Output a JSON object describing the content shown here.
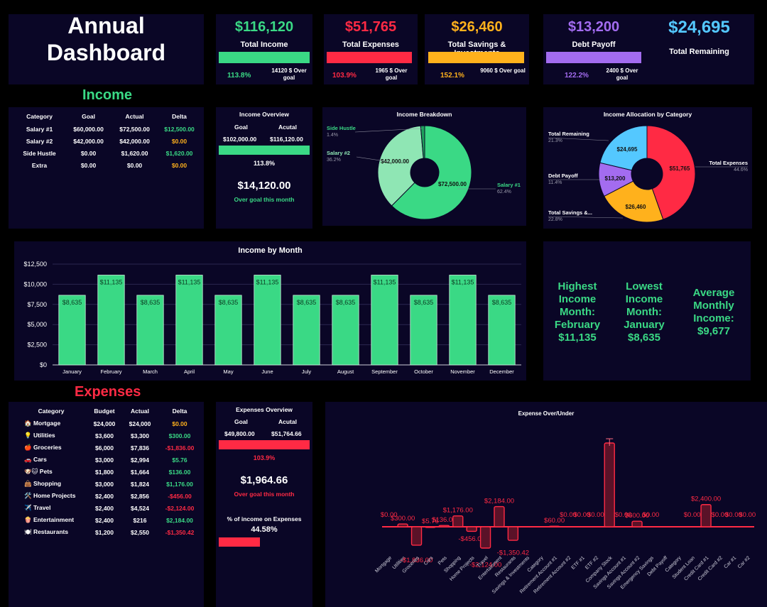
{
  "title_line1": "Annual",
  "title_line2": "Dashboard",
  "kpis": [
    {
      "value": "$116,120",
      "label": "Total Income",
      "pct": "113.8%",
      "note": "14120 $ Over goal",
      "color": "#3ad985"
    },
    {
      "value": "$51,765",
      "label": "Total Expenses",
      "pct": "103.9%",
      "note": "1965 $ Over goal",
      "color": "#ff2a44"
    },
    {
      "value": "$26,460",
      "label": "Total Savings & Investments",
      "pct": "152.1%",
      "note": "9060 $ Over goal",
      "color": "#ffb11c"
    },
    {
      "value": "$13,200",
      "label": "Debt Payoff",
      "pct": "122.2%",
      "note": "2400 $ Over goal",
      "color": "#a36cf0"
    }
  ],
  "remaining": {
    "value": "$24,695",
    "label": "Total Remaining",
    "color": "#54c8ff"
  },
  "income_section_title": "Income",
  "income_table": {
    "headers": [
      "Category",
      "Goal",
      "Actual",
      "Delta"
    ],
    "rows": [
      [
        "Salary #1",
        "$60,000.00",
        "$72,500.00",
        "$12,500.00"
      ],
      [
        "Salary #2",
        "$42,000.00",
        "$42,000.00",
        "$0.00"
      ],
      [
        "Side Hustle",
        "$0.00",
        "$1,620.00",
        "$1,620.00"
      ],
      [
        "Extra",
        "$0.00",
        "$0.00",
        "$0.00"
      ]
    ]
  },
  "income_overview": {
    "title": "Income Overview",
    "goal_label": "Goal",
    "actual_label": "Acutal",
    "goal": "$102,000.00",
    "actual": "$116,120.00",
    "pct": "113.8%",
    "big": "$14,120.00",
    "sub": "Over goal this month"
  },
  "income_breakdown": {
    "title": "Income Breakdown",
    "slices": [
      {
        "name": "Salary #1",
        "value": 72500,
        "pct": "62.4%",
        "label": "$72,500.00",
        "color": "#3ad985"
      },
      {
        "name": "Salary #2",
        "value": 42000,
        "pct": "36.2%",
        "label": "$42,000.00",
        "color": "#8fe6b4"
      },
      {
        "name": "Side Hustle",
        "value": 1620,
        "pct": "1.4%",
        "label": "",
        "color": "#1ea05c"
      }
    ]
  },
  "income_allocation": {
    "title": "Income Allocation by Category",
    "slices": [
      {
        "name": "Total Expenses",
        "value": 51765,
        "pct": "44.6%",
        "label": "$51,765",
        "color": "#ff2a44"
      },
      {
        "name": "Total Savings &...",
        "value": 26460,
        "pct": "22.8%",
        "label": "$26,460",
        "color": "#ffb11c"
      },
      {
        "name": "Debt Payoff",
        "value": 13200,
        "pct": "11.4%",
        "label": "$13,200",
        "color": "#a36cf0"
      },
      {
        "name": "Total Remaining",
        "value": 24695,
        "pct": "21.3%",
        "label": "$24,695",
        "color": "#54c8ff"
      }
    ]
  },
  "chart_data": [
    {
      "type": "bar",
      "title": "Income by Month",
      "categories": [
        "January",
        "February",
        "March",
        "April",
        "May",
        "June",
        "July",
        "August",
        "September",
        "October",
        "November",
        "December"
      ],
      "values": [
        8635,
        11135,
        8635,
        11135,
        8635,
        11135,
        8635,
        8635,
        11135,
        8635,
        11135,
        8635
      ],
      "data_labels": [
        "$8,635",
        "$11,135",
        "$8,635",
        "$11,135",
        "$8,635",
        "$11,135",
        "$8,635",
        "$8,635",
        "$11,135",
        "$8,635",
        "$11,135",
        "$8,635"
      ],
      "yticks": [
        "$0",
        "$2,500",
        "$5,000",
        "$7,500",
        "$10,000",
        "$12,500"
      ],
      "ylim": [
        0,
        12500
      ],
      "color": "#3ad985"
    },
    {
      "type": "bar",
      "title": "Expense Over/Under",
      "categories": [
        "Mortgage",
        "Utilities",
        "Groceries",
        "Cars",
        "Pets",
        "Shopping",
        "Home Projects",
        "Travel",
        "Entertainment",
        "Restaurants",
        "Savings & Investments",
        "Category",
        "Retirement Account #1",
        "Retirement Account #2",
        "ETF #1",
        "ETF #2",
        "Company Stock",
        "Savings Account #1",
        "Savings Account #2",
        "Emergency Savings",
        "Debt Payoff",
        "Category",
        "Student Loan",
        "Credit Card #1",
        "Credit Card #2",
        "Car #1",
        "Car #2"
      ],
      "values": [
        0,
        300,
        -1836,
        5.76,
        136,
        1176,
        -456,
        -2124,
        2184,
        -1350.42,
        null,
        null,
        60,
        0,
        0,
        0,
        9060,
        0,
        600,
        0,
        null,
        null,
        0,
        2400,
        0,
        0,
        0
      ],
      "data_labels": [
        "$0.00",
        "$300.00",
        "-$1,836.00",
        "$5.76",
        "$136.00",
        "$1,176.00",
        "-$456.00",
        "-$2,124.00",
        "$2,184.00",
        "-$1,350.42",
        "",
        "",
        "$60.00",
        "$0.00",
        "$0.00",
        "$0.00",
        "",
        "$0.00",
        "$600.00",
        "$0.00",
        "",
        "",
        "$0.00",
        "$2,400.00",
        "$0.00",
        "$0.00",
        "$0.00"
      ],
      "color": "#ff2a44"
    }
  ],
  "stats": {
    "highest": [
      "Highest",
      "Income",
      "Month:",
      "February",
      "$11,135"
    ],
    "lowest": [
      "Lowest",
      "Income",
      "Month:",
      "January",
      "$8,635"
    ],
    "average": [
      "Average",
      "Monthly",
      "Income:",
      "$9,677"
    ]
  },
  "expenses_section_title": "Expenses",
  "expense_table": {
    "headers": [
      "Category",
      "Budget",
      "Actual",
      "Delta"
    ],
    "rows": [
      [
        "🏠 Mortgage",
        "$24,000",
        "$24,000",
        "$0.00"
      ],
      [
        "💡 Utilities",
        "$3,600",
        "$3,300",
        "$300.00"
      ],
      [
        "🍎 Groceries",
        "$6,000",
        "$7,836",
        "-$1,836.00"
      ],
      [
        "🚗 Cars",
        "$3,000",
        "$2,994",
        "$5.76"
      ],
      [
        "🐶🐱 Pets",
        "$1,800",
        "$1,664",
        "$136.00"
      ],
      [
        "👜 Shopping",
        "$3,000",
        "$1,824",
        "$1,176.00"
      ],
      [
        "🛠️ Home Projects",
        "$2,400",
        "$2,856",
        "-$456.00"
      ],
      [
        "✈️ Travel",
        "$2,400",
        "$4,524",
        "-$2,124.00"
      ],
      [
        "🍿 Entertainment",
        "$2,400",
        "$216",
        "$2,184.00"
      ],
      [
        "🍽️ Restaurants",
        "$1,200",
        "$2,550",
        "-$1,350.42"
      ]
    ]
  },
  "expense_overview": {
    "title": "Expenses Overview",
    "goal_label": "Goal",
    "actual_label": "Acutal",
    "goal": "$49,800.00",
    "actual": "$51,764.66",
    "pct": "103.9%",
    "big": "$1,964.66",
    "sub": "Over goal this month",
    "pie_label": "% of income on Expenses",
    "pie_value": "44.58%"
  }
}
